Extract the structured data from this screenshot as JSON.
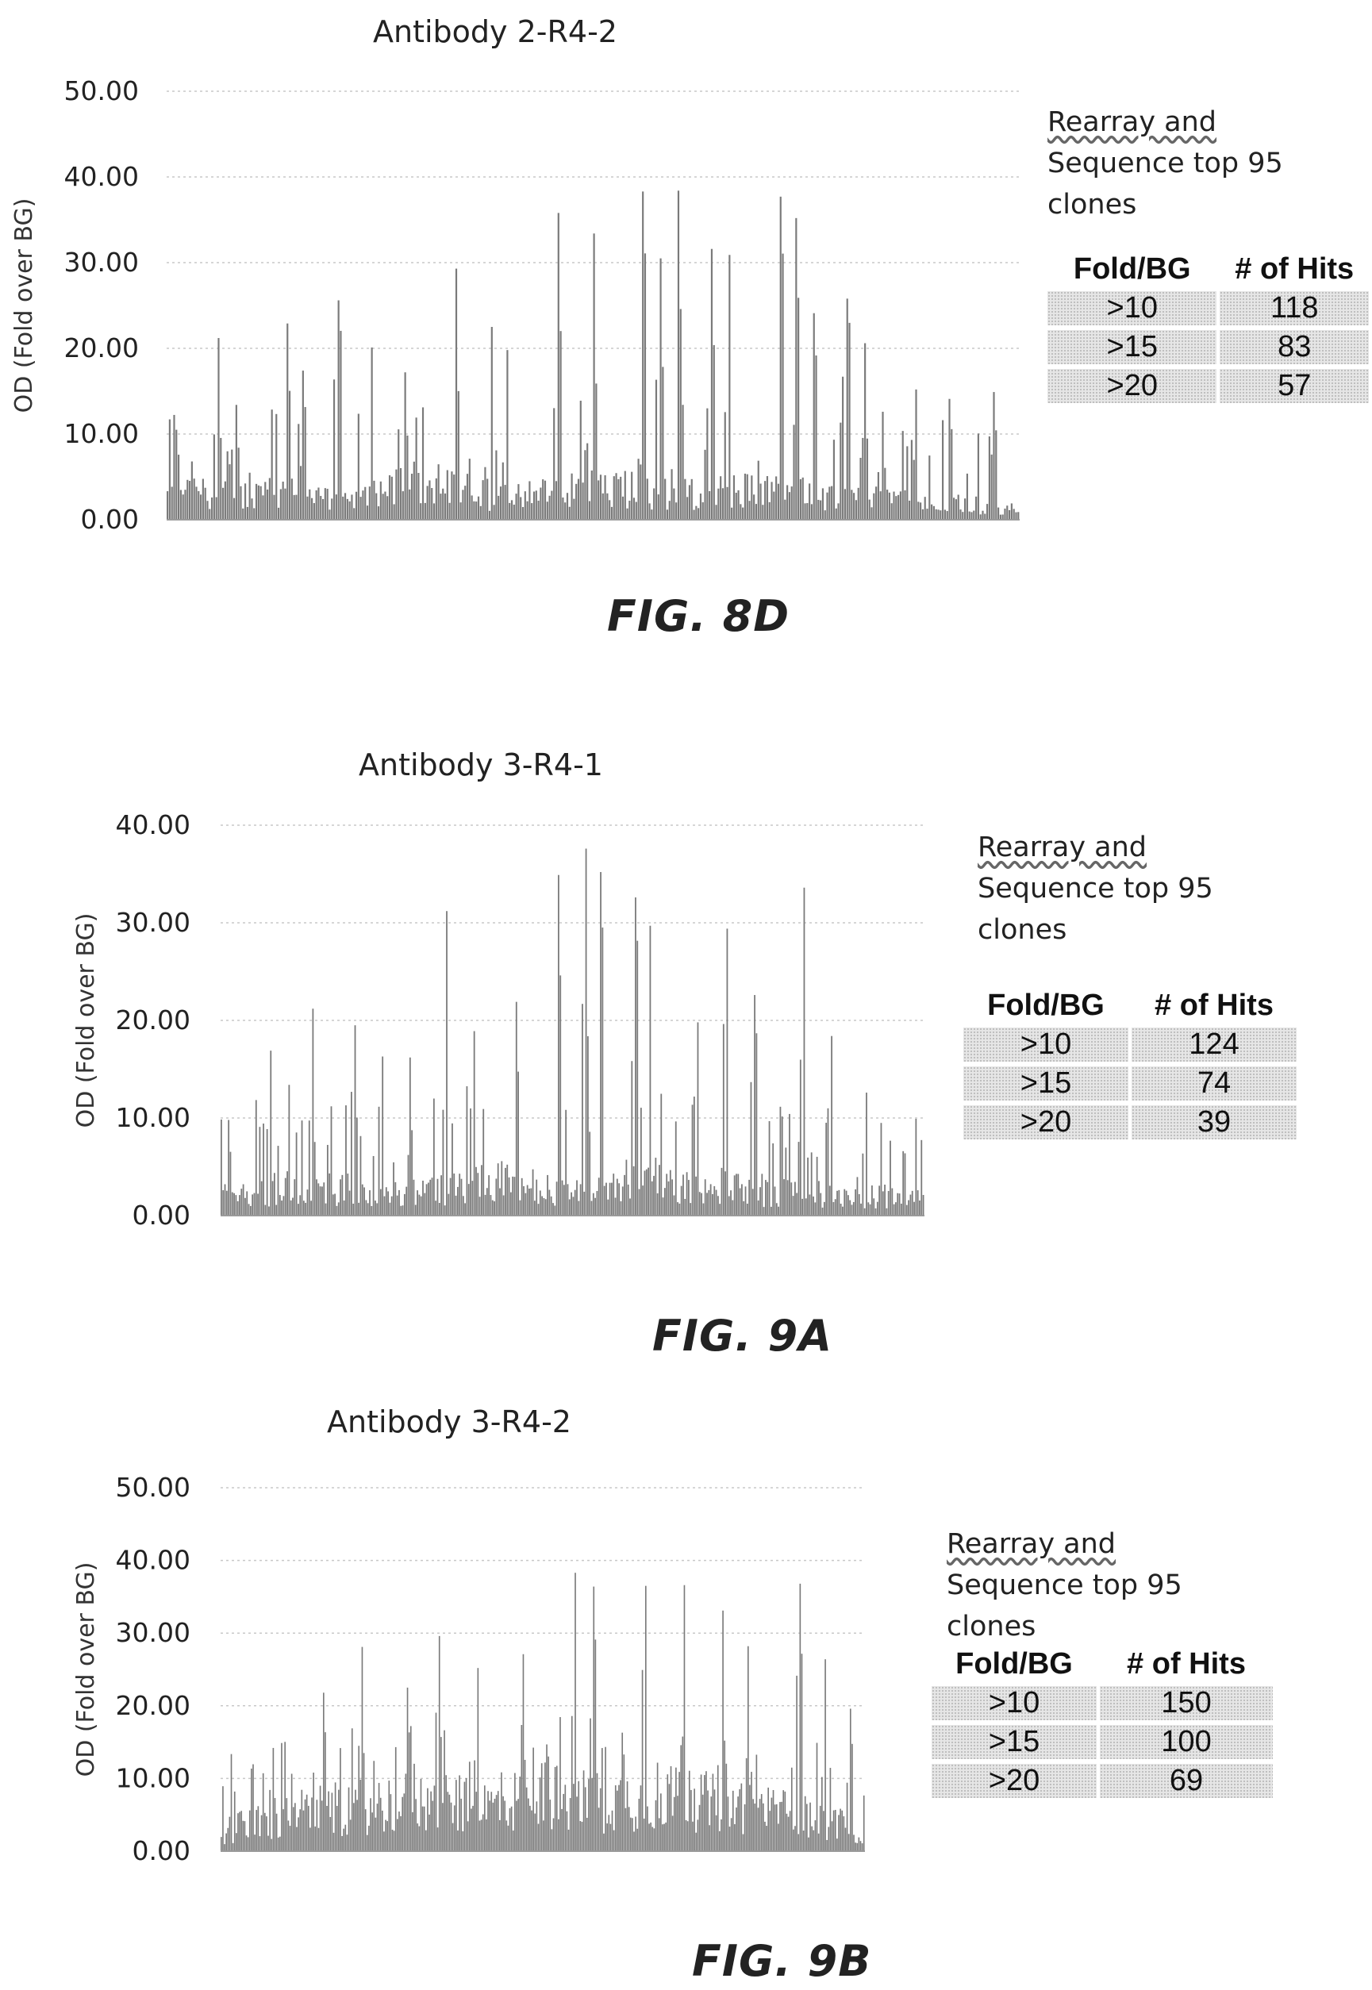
{
  "chart_data": [
    {
      "type": "bar",
      "figure_label": "FIG. 8D",
      "title": "Antibody 2-R4-2",
      "xlabel": "",
      "ylabel": "OD (Fold over BG)",
      "ylim": [
        0,
        50
      ],
      "y_ticks": [
        "50.00",
        "40.00",
        "30.00",
        "20.00",
        "10.00",
        "0.00"
      ],
      "grid": true,
      "bar_count": 384,
      "peaks": [
        [
          0.01,
          10.5
        ],
        [
          0.03,
          6.8
        ],
        [
          0.06,
          21.2
        ],
        [
          0.08,
          13.4
        ],
        [
          0.14,
          22.9
        ],
        [
          0.16,
          17.4
        ],
        [
          0.2,
          25.6
        ],
        [
          0.24,
          20.1
        ],
        [
          0.28,
          17.2
        ],
        [
          0.34,
          29.3
        ],
        [
          0.38,
          22.5
        ],
        [
          0.4,
          19.8
        ],
        [
          0.46,
          35.8
        ],
        [
          0.5,
          33.4
        ],
        [
          0.56,
          38.3
        ],
        [
          0.58,
          30.5
        ],
        [
          0.6,
          38.4
        ],
        [
          0.64,
          31.6
        ],
        [
          0.66,
          30.9
        ],
        [
          0.72,
          37.7
        ],
        [
          0.74,
          35.2
        ],
        [
          0.76,
          24.1
        ],
        [
          0.8,
          25.8
        ],
        [
          0.82,
          20.6
        ],
        [
          0.84,
          12.6
        ],
        [
          0.88,
          15.2
        ],
        [
          0.92,
          14.1
        ],
        [
          0.97,
          14.9
        ]
      ],
      "baseline": [
        [
          0.0,
          3.0
        ],
        [
          0.1,
          4.0
        ],
        [
          0.2,
          2.5
        ],
        [
          0.3,
          5.0
        ],
        [
          0.4,
          3.0
        ],
        [
          0.5,
          4.5
        ],
        [
          0.6,
          3.5
        ],
        [
          0.7,
          4.5
        ],
        [
          0.8,
          3.0
        ],
        [
          0.9,
          2.5
        ],
        [
          1.0,
          1.5
        ]
      ],
      "summary": {
        "note_lines": [
          "Rearray and",
          "Sequence top 95",
          "clones"
        ],
        "headers": [
          "Fold/BG",
          "# of Hits"
        ],
        "rows": [
          [
            ">10",
            "118"
          ],
          [
            ">15",
            "83"
          ],
          [
            ">20",
            "57"
          ]
        ]
      }
    },
    {
      "type": "bar",
      "figure_label": "FIG. 9A",
      "title": "Antibody 3-R4-1",
      "xlabel": "",
      "ylabel": "OD (Fold over BG)",
      "ylim": [
        0,
        40
      ],
      "y_ticks": [
        "40.00",
        "30.00",
        "20.00",
        "10.00",
        "0.00"
      ],
      "grid": true,
      "bar_count": 384,
      "peaks": [
        [
          0.01,
          9.8
        ],
        [
          0.07,
          16.9
        ],
        [
          0.13,
          21.2
        ],
        [
          0.19,
          19.5
        ],
        [
          0.23,
          16.3
        ],
        [
          0.27,
          16.2
        ],
        [
          0.32,
          31.2
        ],
        [
          0.36,
          18.9
        ],
        [
          0.42,
          21.9
        ],
        [
          0.48,
          34.9
        ],
        [
          0.52,
          37.6
        ],
        [
          0.54,
          35.2
        ],
        [
          0.59,
          32.6
        ],
        [
          0.61,
          29.7
        ],
        [
          0.68,
          19.8
        ],
        [
          0.72,
          29.4
        ],
        [
          0.76,
          22.6
        ],
        [
          0.83,
          33.6
        ],
        [
          0.87,
          18.4
        ],
        [
          0.92,
          12.6
        ],
        [
          0.97,
          6.6
        ]
      ],
      "baseline": [
        [
          0.0,
          2.0
        ],
        [
          0.1,
          3.5
        ],
        [
          0.25,
          2.5
        ],
        [
          0.4,
          4.0
        ],
        [
          0.5,
          3.0
        ],
        [
          0.6,
          4.5
        ],
        [
          0.75,
          3.0
        ],
        [
          0.9,
          2.5
        ],
        [
          1.0,
          2.0
        ]
      ],
      "summary": {
        "note_lines": [
          "Rearray and",
          "Sequence top 95",
          "clones"
        ],
        "headers": [
          "Fold/BG",
          "# of Hits"
        ],
        "rows": [
          [
            ">10",
            "124"
          ],
          [
            ">15",
            "74"
          ],
          [
            ">20",
            "39"
          ]
        ]
      }
    },
    {
      "type": "bar",
      "figure_label": "FIG. 9B",
      "title": "Antibody 3-R4-2",
      "xlabel": "",
      "ylabel": "OD (Fold over BG)",
      "ylim": [
        0,
        50
      ],
      "y_ticks": [
        "50.00",
        "40.00",
        "30.00",
        "20.00",
        "10.00",
        "0.00"
      ],
      "grid": true,
      "bar_count": 384,
      "peaks": [
        [
          0.02,
          8.2
        ],
        [
          0.08,
          14.2
        ],
        [
          0.16,
          21.8
        ],
        [
          0.22,
          28.1
        ],
        [
          0.29,
          22.5
        ],
        [
          0.34,
          29.6
        ],
        [
          0.4,
          25.2
        ],
        [
          0.47,
          27.1
        ],
        [
          0.55,
          38.3
        ],
        [
          0.58,
          36.4
        ],
        [
          0.66,
          36.5
        ],
        [
          0.72,
          36.6
        ],
        [
          0.78,
          33.1
        ],
        [
          0.82,
          28.2
        ],
        [
          0.9,
          36.8
        ],
        [
          0.94,
          26.4
        ],
        [
          0.98,
          19.6
        ]
      ],
      "baseline": [
        [
          0.0,
          3.0
        ],
        [
          0.1,
          6.0
        ],
        [
          0.2,
          7.0
        ],
        [
          0.3,
          8.0
        ],
        [
          0.4,
          7.0
        ],
        [
          0.5,
          9.0
        ],
        [
          0.6,
          8.0
        ],
        [
          0.7,
          9.0
        ],
        [
          0.8,
          7.0
        ],
        [
          0.9,
          6.0
        ],
        [
          1.0,
          3.0
        ]
      ],
      "summary": {
        "note_lines": [
          "Rearray and",
          "Sequence top 95",
          "clones"
        ],
        "headers": [
          "Fold/BG",
          "# of Hits"
        ],
        "rows": [
          [
            ">10",
            "150"
          ],
          [
            ">15",
            "100"
          ],
          [
            ">20",
            "69"
          ]
        ]
      }
    }
  ],
  "colors": {
    "bar": "#7a7a7a",
    "grid": "#c8c8c8",
    "axis": "#9a9a9a"
  }
}
